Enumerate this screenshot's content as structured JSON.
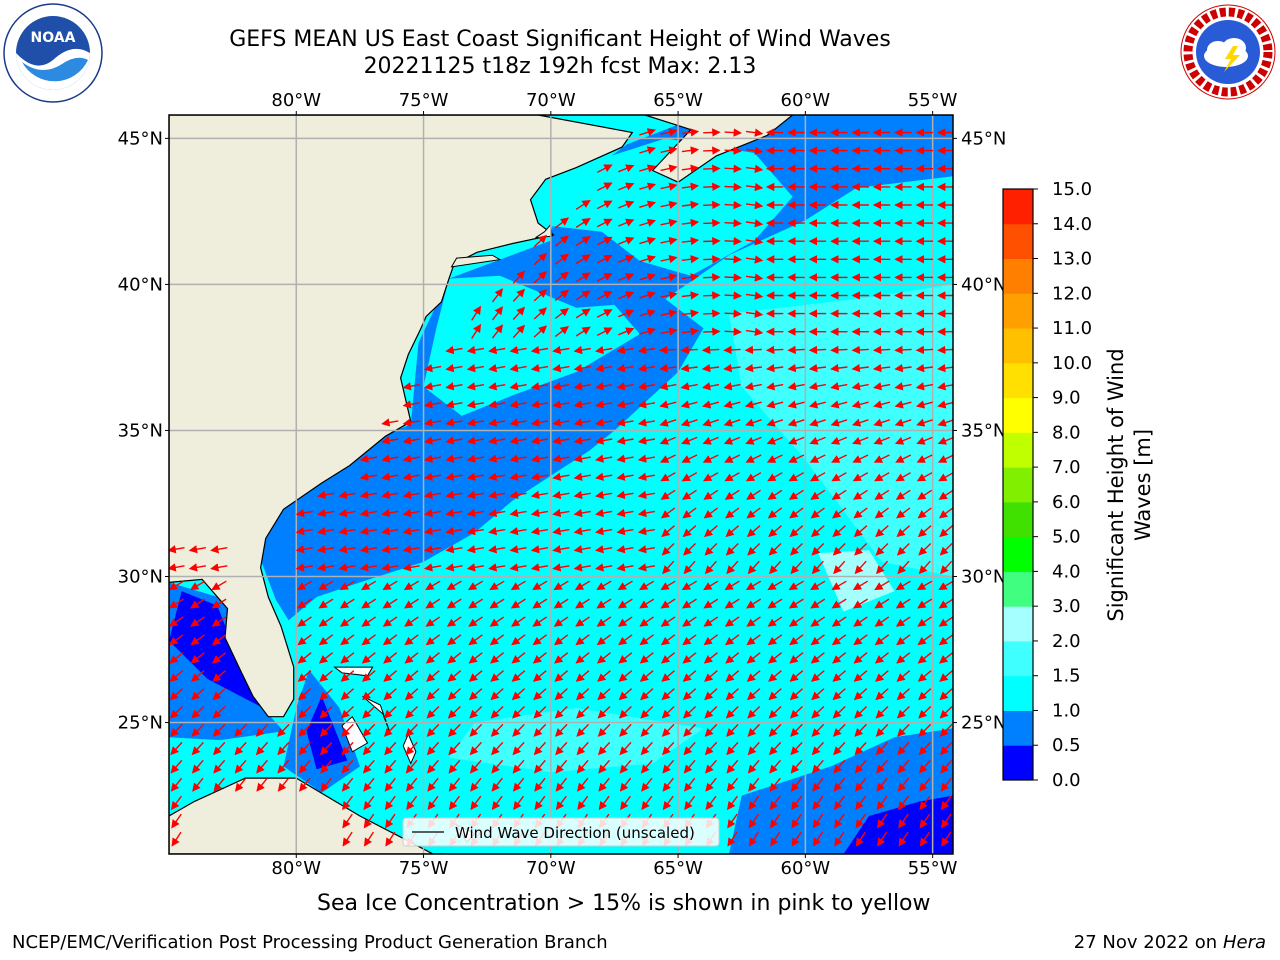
{
  "header": {
    "title_line1": "GEFS MEAN US East Coast Significant Height of Wind Waves",
    "title_line2": "20221125 t18z 192h fcst   Max: 2.13"
  },
  "logos": {
    "left": {
      "name": "noaa-logo",
      "text": "NOAA",
      "ring_text": "NATIONAL OCEANIC AND ATMOSPHERIC ADMINISTRATION · U.S. DEPARTMENT OF COMMERCE"
    },
    "right": {
      "name": "nws-logo",
      "ring_text": "NATIONAL WEATHER SERVICE"
    }
  },
  "map": {
    "projection": "lat-lon",
    "lon_range": [
      -85,
      -54.2
    ],
    "lat_range": [
      20.5,
      45.8
    ],
    "lon_ticks": [
      {
        "value": -80,
        "label": "80°W"
      },
      {
        "value": -75,
        "label": "75°W"
      },
      {
        "value": -70,
        "label": "70°W"
      },
      {
        "value": -65,
        "label": "65°W"
      },
      {
        "value": -60,
        "label": "60°W"
      },
      {
        "value": -55,
        "label": "55°W"
      }
    ],
    "lat_ticks": [
      {
        "value": 45,
        "label": "45°N"
      },
      {
        "value": 40,
        "label": "40°N"
      },
      {
        "value": 35,
        "label": "35°N"
      },
      {
        "value": 30,
        "label": "30°N"
      },
      {
        "value": 25,
        "label": "25°N"
      }
    ],
    "legend_label": "Wind Wave Direction (unscaled)",
    "colors": {
      "land": "#efeedc",
      "ocean_0_0_5": "#0000ff",
      "ocean_0_5_1_0": "#0080ff",
      "ocean_1_0_1_5": "#00ffff",
      "ocean_1_5_2_0": "#40ffff",
      "ocean_2_0_3_0": "#a6ffff",
      "arrow": "#ff0000",
      "grid": "#b0b0b0"
    }
  },
  "colorbar": {
    "label": "Significant Height of Wind Waves [m]",
    "ticks": [
      "0.0",
      "0.5",
      "1.0",
      "1.5",
      "2.0",
      "3.0",
      "4.0",
      "5.0",
      "6.0",
      "7.0",
      "8.0",
      "9.0",
      "10.0",
      "11.0",
      "12.0",
      "13.0",
      "14.0",
      "15.0"
    ],
    "colors": [
      "#0000ff",
      "#0080ff",
      "#00ffff",
      "#40ffff",
      "#a6ffff",
      "#40ff80",
      "#00ff00",
      "#40e000",
      "#80f000",
      "#c0ff00",
      "#ffff00",
      "#ffe000",
      "#ffc000",
      "#ffa000",
      "#ff8000",
      "#ff5000",
      "#ff2000"
    ]
  },
  "footer": {
    "note": "Sea Ice Concentration > 15% is shown in pink to yellow",
    "left": "NCEP/EMC/Verification Post Processing Product Generation Branch",
    "right_date": "27 Nov 2022 on",
    "right_machine": "Hera"
  }
}
